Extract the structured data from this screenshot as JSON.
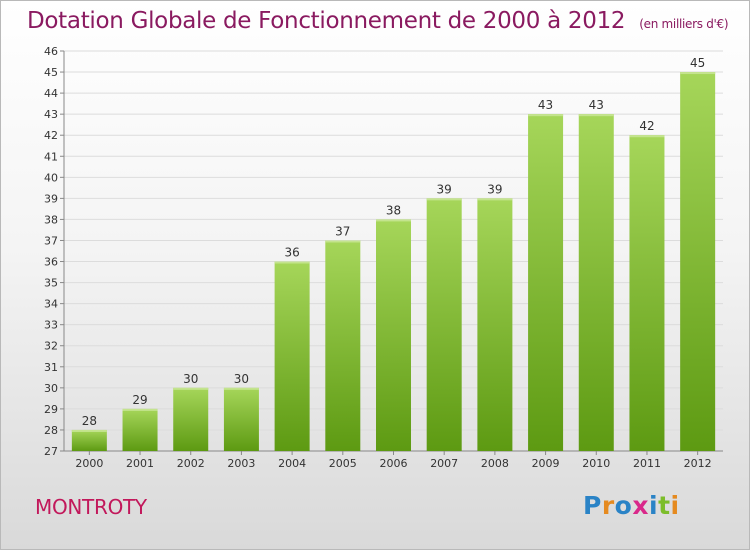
{
  "header": {
    "title": "Dotation Globale de Fonctionnement de 2000 à 2012",
    "subtitle": "(en milliers d'€)"
  },
  "footer": {
    "commune": "MONTROTY",
    "logo": "Proxiti"
  },
  "colors": {
    "bar_light": "#a6d65a",
    "bar_dark": "#5d9a12",
    "title": "#8a1a60",
    "commune": "#c2185b"
  },
  "chart_data": {
    "type": "bar",
    "title": "Dotation Globale de Fonctionnement de 2000 à 2012",
    "subtitle": "(en milliers d'€)",
    "xlabel": "",
    "ylabel": "",
    "categories": [
      "2000",
      "2001",
      "2002",
      "2003",
      "2004",
      "2005",
      "2006",
      "2007",
      "2008",
      "2009",
      "2010",
      "2011",
      "2012"
    ],
    "values": [
      28,
      29,
      30,
      30,
      36,
      37,
      38,
      39,
      39,
      43,
      43,
      42,
      45
    ],
    "ylim": [
      27,
      46
    ],
    "yticks": [
      27,
      28,
      29,
      30,
      31,
      32,
      33,
      34,
      35,
      36,
      37,
      38,
      39,
      40,
      41,
      42,
      43,
      44,
      45,
      46
    ],
    "grid": true,
    "legend": "none"
  }
}
